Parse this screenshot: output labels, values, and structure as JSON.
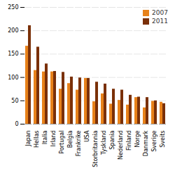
{
  "chart_data": {
    "type": "bar",
    "categories": [
      "Japan",
      "Hellas",
      "Italia",
      "Irland",
      "Portugal",
      "Belgia",
      "Frankrike",
      "USA",
      "Storbritannia",
      "Tyskland",
      "Spania",
      "Nederland",
      "Finland",
      "Norge",
      "Danmark",
      "Sverige",
      "Sveits"
    ],
    "series": [
      {
        "name": "2007",
        "color": "#e8821a",
        "values": [
          167,
          115,
          112,
          112,
          75,
          87,
          73,
          98,
          48,
          65,
          43,
          51,
          41,
          57,
          35,
          49,
          47
        ]
      },
      {
        "name": "2011",
        "color": "#7a3008",
        "values": [
          211,
          165,
          129,
          113,
          111,
          101,
          99,
          98,
          90,
          86,
          75,
          73,
          62,
          58,
          57,
          50,
          44
        ]
      }
    ],
    "ylim": [
      0,
      250
    ],
    "yticks": [
      0,
      50,
      100,
      150,
      200,
      250
    ],
    "grid": true,
    "legend": "upper right"
  }
}
